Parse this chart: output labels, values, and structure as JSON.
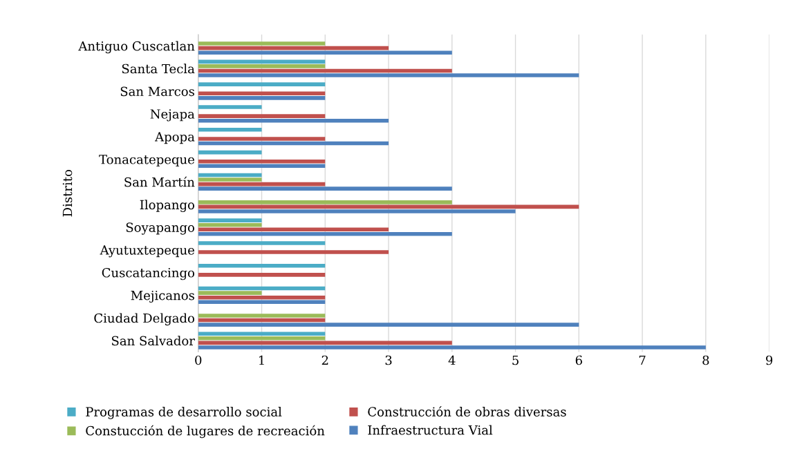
{
  "chart_data": {
    "type": "bar",
    "orientation": "horizontal",
    "ylabel": "Distrito",
    "categories": [
      "Antiguo Cuscatlan",
      "Santa Tecla",
      "San Marcos",
      "Nejapa",
      "Apopa",
      "Tonacatepeque",
      "San Martín",
      "Ilopango",
      "Soyapango",
      "Ayutuxtepeque",
      "Cuscatancingo",
      "Mejicanos",
      "Ciudad Delgado",
      "San Salvador"
    ],
    "series": [
      {
        "name": "Programas de desarrollo social",
        "color": "#4bacc6",
        "values": [
          0,
          2,
          2,
          1,
          1,
          1,
          1,
          0,
          1,
          2,
          2,
          2,
          0,
          2
        ]
      },
      {
        "name": "Constucción de lugares de recreación",
        "color": "#9bbb59",
        "values": [
          2,
          2,
          0,
          0,
          0,
          0,
          1,
          4,
          1,
          0,
          0,
          1,
          2,
          2
        ]
      },
      {
        "name": "Construcción de obras diversas",
        "color": "#c0504d",
        "values": [
          3,
          4,
          2,
          2,
          2,
          2,
          2,
          6,
          3,
          3,
          2,
          2,
          2,
          4
        ]
      },
      {
        "name": "Infraestructura Vial",
        "color": "#4f81bd",
        "values": [
          4,
          6,
          2,
          3,
          3,
          2,
          4,
          5,
          4,
          0,
          0,
          2,
          6,
          8
        ]
      }
    ],
    "xlim": [
      0,
      9
    ],
    "xticks": [
      0,
      1,
      2,
      3,
      4,
      5,
      6,
      7,
      8,
      9
    ],
    "grid": "x",
    "legend": "bottom"
  }
}
